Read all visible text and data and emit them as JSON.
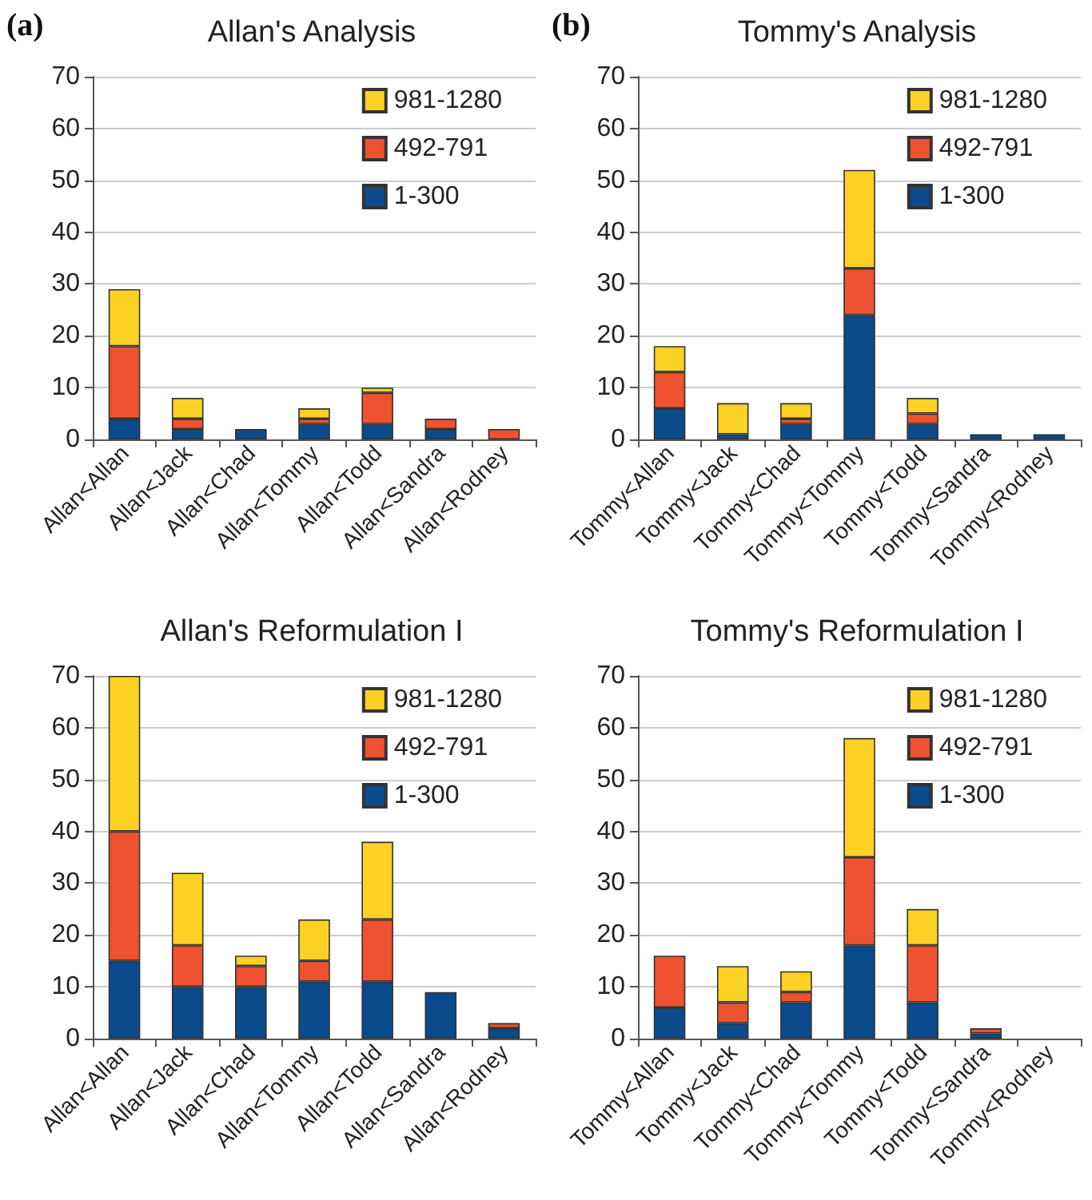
{
  "chart_data": [
    {
      "type": "bar",
      "title": "Allan's Analysis",
      "annotations": [
        "(a)"
      ],
      "stacked": true,
      "grid": "y",
      "legend": "top right",
      "ylim": [
        0,
        70
      ],
      "yticks": [
        0,
        10,
        20,
        30,
        40,
        50,
        60,
        70
      ],
      "categories": [
        "Allan<Allan",
        "Allan<Jack",
        "Allan<Chad",
        "Allan<Tommy",
        "Allan<Todd",
        "Allan<Sandra",
        "Allan<Rodney"
      ],
      "series": [
        {
          "name": "1-300",
          "color": "#0b4a8b",
          "values": [
            4,
            2,
            2,
            3,
            3,
            2,
            0
          ]
        },
        {
          "name": "492-791",
          "color": "#ee5230",
          "values": [
            14,
            2,
            0,
            1,
            6,
            2,
            2
          ]
        },
        {
          "name": "981-1280",
          "color": "#fbd223",
          "values": [
            11,
            4,
            0,
            2,
            1,
            0,
            0
          ]
        }
      ]
    },
    {
      "type": "bar",
      "title": "Tommy's Analysis",
      "annotations": [
        "(b)"
      ],
      "stacked": true,
      "grid": "y",
      "legend": "top right",
      "ylim": [
        0,
        70
      ],
      "yticks": [
        0,
        10,
        20,
        30,
        40,
        50,
        60,
        70
      ],
      "categories": [
        "Tommy<Allan",
        "Tommy<Jack",
        "Tommy<Chad",
        "Tommy<Tommy",
        "Tommy<Todd",
        "Tommy<Sandra",
        "Tommy<Rodney"
      ],
      "series": [
        {
          "name": "1-300",
          "color": "#0b4a8b",
          "values": [
            6,
            1,
            3,
            24,
            3,
            1,
            1
          ]
        },
        {
          "name": "492-791",
          "color": "#ee5230",
          "values": [
            7,
            0,
            1,
            9,
            2,
            0,
            0
          ]
        },
        {
          "name": "981-1280",
          "color": "#fbd223",
          "values": [
            5,
            6,
            3,
            19,
            3,
            0,
            0
          ]
        }
      ]
    },
    {
      "type": "bar",
      "title": "Allan's Reformulation I",
      "stacked": true,
      "grid": "y",
      "legend": "top right",
      "ylim": [
        0,
        70
      ],
      "yticks": [
        0,
        10,
        20,
        30,
        40,
        50,
        60,
        70
      ],
      "categories": [
        "Allan<Allan",
        "Allan<Jack",
        "Allan<Chad",
        "Allan<Tommy",
        "Allan<Todd",
        "Allan<Sandra",
        "Allan<Rodney"
      ],
      "series": [
        {
          "name": "1-300",
          "color": "#0b4a8b",
          "values": [
            15,
            10,
            10,
            11,
            11,
            9,
            2
          ]
        },
        {
          "name": "492-791",
          "color": "#ee5230",
          "values": [
            25,
            8,
            4,
            4,
            12,
            0,
            1
          ]
        },
        {
          "name": "981-1280",
          "color": "#fbd223",
          "values": [
            30,
            14,
            2,
            8,
            15,
            0,
            0
          ]
        }
      ]
    },
    {
      "type": "bar",
      "title": "Tommy's Reformulation I",
      "stacked": true,
      "grid": "y",
      "legend": "top right",
      "ylim": [
        0,
        70
      ],
      "yticks": [
        0,
        10,
        20,
        30,
        40,
        50,
        60,
        70
      ],
      "categories": [
        "Tommy<Allan",
        "Tommy<Jack",
        "Tommy<Chad",
        "Tommy<Tommy",
        "Tommy<Todd",
        "Tommy<Sandra",
        "Tommy<Rodney"
      ],
      "series": [
        {
          "name": "1-300",
          "color": "#0b4a8b",
          "values": [
            6,
            3,
            7,
            18,
            7,
            1,
            0
          ]
        },
        {
          "name": "492-791",
          "color": "#ee5230",
          "values": [
            10,
            4,
            2,
            17,
            11,
            1,
            0
          ]
        },
        {
          "name": "981-1280",
          "color": "#fbd223",
          "values": [
            0,
            7,
            4,
            23,
            7,
            0,
            0
          ]
        }
      ]
    }
  ]
}
